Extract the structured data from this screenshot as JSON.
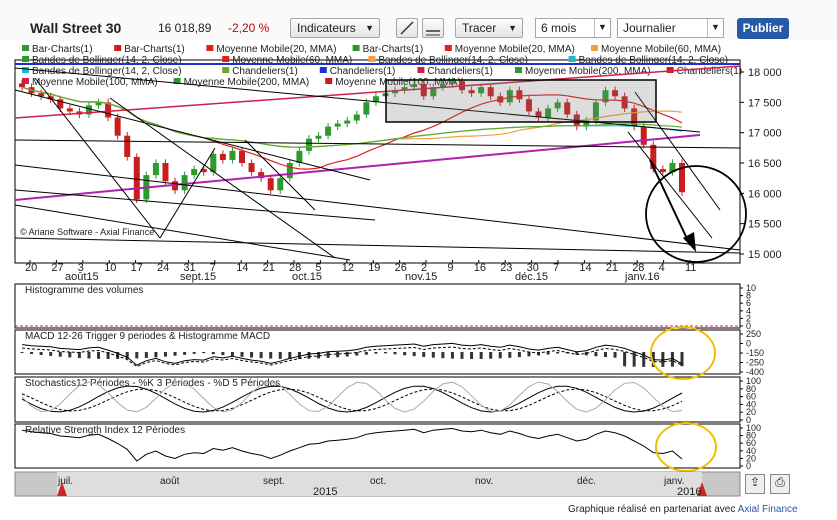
{
  "header": {
    "title": "Wall Street 30",
    "price": "16 018,89",
    "change": "-2,20 %",
    "indicators_label": "Indicateurs",
    "trace_label": "Tracer",
    "period_value": "6 mois",
    "interval_value": "Journalier",
    "publish_label": "Publier"
  },
  "legend_rows": [
    [
      "Bar-Charts(1)",
      "Bar-Charts(1)",
      "Moyenne Mobile(20, MMA)",
      "Bar-Charts(1)",
      "Moyenne Mobile(20, MMA)",
      "Moyenne Mobile(60, MMA)"
    ],
    [
      "Bandes de Bollinger(14, 2, Close)",
      "Moyenne Mobile(60, MMA)",
      "Bandes de Bollinger(14, 2, Close)",
      "Bandes de Bollinger(14, 2, Close)"
    ],
    [
      "Bandes de Bollinger(14, 2, Close)",
      "Chandeliers(1)",
      "Chandeliers(1)",
      "Chandeliers(1)",
      "Moyenne Mobile(200, MMA)",
      "Chandeliers(1)"
    ],
    [
      "Moyenne Mobile(100, MMA)",
      "Moyenne Mobile(200, MMA)",
      "Moyenne Mobile(100, MMA)"
    ]
  ],
  "colors": {
    "up": "#2e9a2e",
    "down": "#c81e1e",
    "mma20": "#e02020",
    "mma60": "#f2a03c",
    "mma100": "#20b8c8",
    "mma200": "#6aa82a",
    "magenta": "#b020b0",
    "blue": "#1f2fcf",
    "crimson": "#d0204a",
    "yellow": "#f0c000",
    "gray": "#888888"
  },
  "watermark": "© Ariane Software - Axial Finance",
  "footer": {
    "text": "Graphique réalisé en partenariat avec",
    "link": "Axial Finance"
  },
  "panel_titles": {
    "volume": "Histogramme des volumes",
    "macd": "MACD 12-26   Trigger 9 periodes & Histogramme MACD",
    "stoch": "Stochastics12 Périodes  -  %K 3 Périodes  -  %D 5 Périodes",
    "rsi": "Relative Strength Index 12 Périodes"
  },
  "chart_data": [
    {
      "type": "candlestick",
      "title": "Wall Street 30",
      "y_ticks": [
        "18 000",
        "17 500",
        "17 000",
        "16 500",
        "16 000",
        "15 500",
        "15 000"
      ],
      "ylim": [
        15000,
        18100
      ],
      "x_day_labels": [
        "20",
        "27",
        "3",
        "10",
        "17",
        "24",
        "31",
        "7",
        "14",
        "21",
        "28",
        "5",
        "12",
        "19",
        "26",
        "2",
        "9",
        "16",
        "23",
        "30",
        "7",
        "14",
        "21",
        "28",
        "4",
        "11"
      ],
      "x_month_labels": [
        "août15",
        "sept.15",
        "oct.15",
        "nov.15",
        "déc.15",
        "janv.16"
      ],
      "close": [
        17750,
        17650,
        17600,
        17550,
        17400,
        17350,
        17300,
        17450,
        17500,
        17250,
        16950,
        16600,
        15900,
        16300,
        16500,
        16200,
        16050,
        16300,
        16400,
        16350,
        16650,
        16550,
        16700,
        16500,
        16350,
        16250,
        16050,
        16250,
        16500,
        16700,
        16900,
        16950,
        17100,
        17150,
        17200,
        17300,
        17500,
        17600,
        17650,
        17700,
        17750,
        17800,
        17600,
        17750,
        17800,
        17850,
        17700,
        17650,
        17750,
        17600,
        17500,
        17700,
        17550,
        17350,
        17250,
        17400,
        17500,
        17300,
        17100,
        17200,
        17500,
        17700,
        17600,
        17400,
        17100,
        16800,
        16400,
        16350,
        16500,
        16018
      ]
    },
    {
      "type": "histogram",
      "title": "Histogramme des volumes",
      "y_ticks": [
        "10",
        "8",
        "6",
        "4",
        "2",
        "0"
      ]
    },
    {
      "type": "line",
      "title": "MACD 12-26   Trigger 9 periodes & Histogramme MACD",
      "y_ticks": [
        "250",
        "0",
        "-150",
        "-250",
        "-400"
      ]
    },
    {
      "type": "line",
      "title": "Stochastics12 Périodes  -  %K 3 Périodes  -  %D 5 Périodes",
      "y_ticks": [
        "100",
        "80",
        "60",
        "40",
        "20",
        "0"
      ]
    },
    {
      "type": "line",
      "title": "Relative Strength Index 12 Périodes",
      "y_ticks": [
        "100",
        "80",
        "60",
        "40",
        "20",
        "0"
      ]
    }
  ],
  "navigator": {
    "months": [
      "juil.",
      "août",
      "sept.",
      "oct.",
      "nov.",
      "déc.",
      "janv."
    ],
    "years": [
      "2015",
      "2016"
    ]
  }
}
